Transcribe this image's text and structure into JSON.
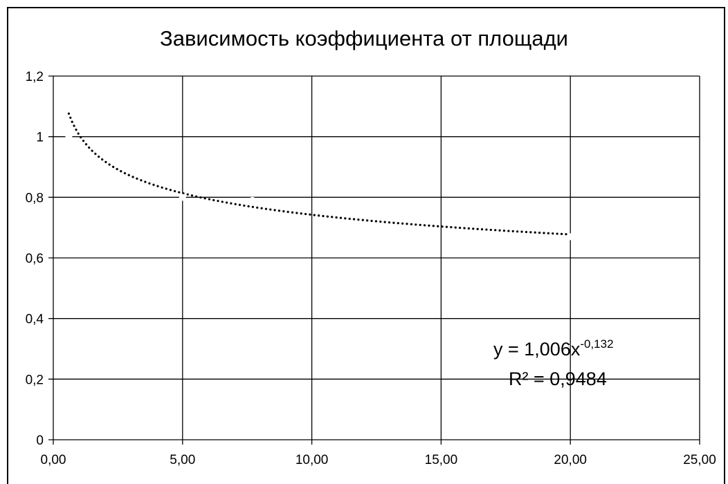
{
  "chart_data": {
    "type": "scatter",
    "title": "Зависимость коэффициента от площади",
    "xlabel": "",
    "ylabel": "",
    "xlim": [
      0,
      25
    ],
    "ylim": [
      0,
      1.2
    ],
    "x_ticks": [
      0,
      5,
      10,
      15,
      20,
      25
    ],
    "y_ticks": [
      0,
      0.2,
      0.4,
      0.6,
      0.8,
      1,
      1.2
    ],
    "x_tick_labels": [
      "0,00",
      "5,00",
      "10,00",
      "15,00",
      "20,00",
      "25,00"
    ],
    "y_tick_labels": [
      "0",
      "0,2",
      "0,4",
      "0,6",
      "0,8",
      "1",
      "1,2"
    ],
    "grid": true,
    "series": [
      {
        "points": [
          {
            "x": 0.6,
            "y": 1.0
          },
          {
            "x": 5,
            "y": 0.8
          },
          {
            "x": 7.7,
            "y": 0.79
          },
          {
            "x": 20,
            "y": 0.67
          }
        ],
        "color": "#ffffff"
      }
    ],
    "trendline": {
      "type": "power",
      "a": 1.006,
      "b": -0.132,
      "x_range": [
        0.6,
        20
      ],
      "style": "dotted",
      "color": "#000000"
    },
    "annotation": {
      "equation_base": "y = 1,006x",
      "equation_exponent": "-0,132",
      "r_squared": "R² = 0,9484"
    }
  }
}
